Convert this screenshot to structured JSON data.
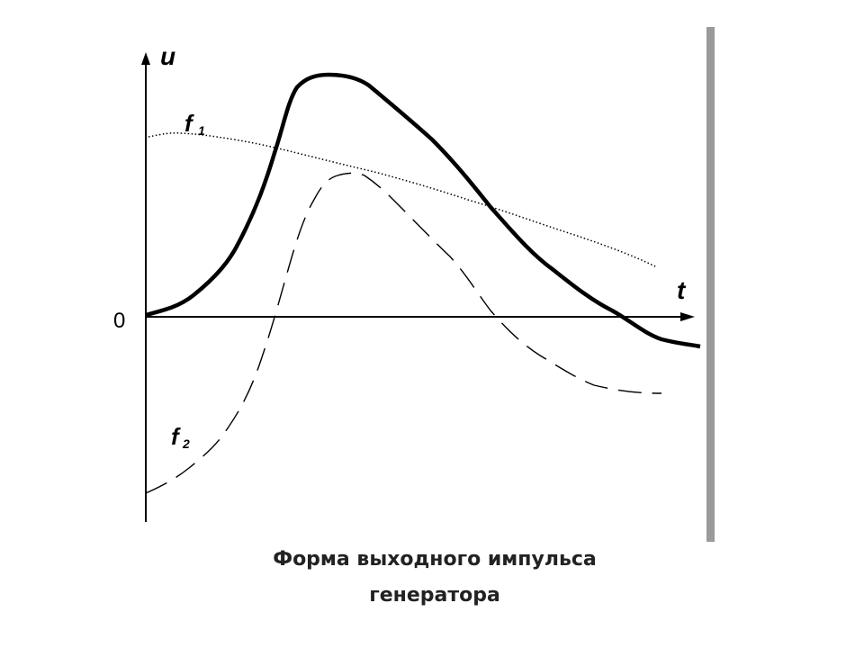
{
  "axes": {
    "y_label": "u",
    "x_label": "t",
    "origin_label": "0"
  },
  "curves": [
    {
      "label": "f",
      "subscript": "1"
    },
    {
      "label": "f",
      "subscript": "2"
    }
  ],
  "caption": {
    "lines": [
      "Форма выходного импульса",
      "генератора"
    ]
  }
}
